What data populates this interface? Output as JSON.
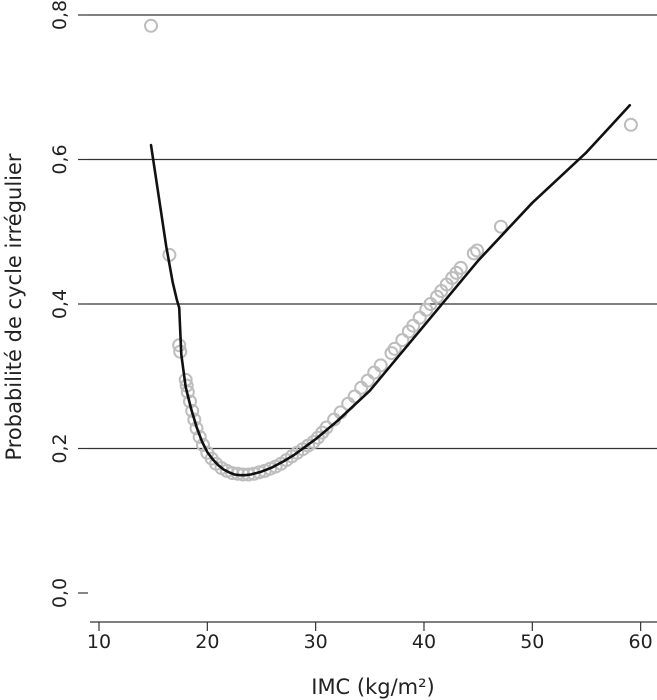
{
  "chart_data": {
    "type": "scatter",
    "title": "",
    "xlabel": "IMC (kg/m²)",
    "ylabel": "Probabilité de cycle irrégulier",
    "xlim": [
      9,
      61
    ],
    "ylim": [
      -0.04,
      0.8
    ],
    "x_ticks": [
      10,
      20,
      30,
      40,
      50,
      60
    ],
    "x_tick_labels": [
      "10",
      "20",
      "30",
      "40",
      "50",
      "60"
    ],
    "y_ticks": [
      0.0,
      0.2,
      0.4,
      0.6,
      0.8
    ],
    "y_tick_labels": [
      "0,0",
      "0,2",
      "0,4",
      "0,6",
      "0,8"
    ],
    "grid": "horizontal",
    "legend": "none",
    "colors": {
      "points": "#bdbdbd",
      "line": "#111111",
      "grid": "#333333",
      "axis": "#333333"
    },
    "series": [
      {
        "kind": "points",
        "x": [
          14.8,
          16.5,
          17.4,
          17.5,
          18.0,
          18.1,
          18.2,
          18.4,
          18.6,
          18.8,
          19.0,
          19.3,
          19.6,
          20.0,
          20.4,
          20.8,
          21.3,
          21.8,
          22.3,
          22.8,
          23.3,
          23.8,
          24.3,
          24.8,
          25.3,
          25.8,
          26.3,
          26.8,
          27.3,
          27.8,
          28.3,
          28.8,
          29.3,
          29.8,
          30.2,
          30.6,
          31.0,
          31.7,
          32.3,
          33.0,
          33.6,
          34.2,
          34.8,
          35.4,
          36.0,
          37.0,
          37.3,
          38.0,
          38.6,
          39.0,
          39.6,
          40.2,
          40.6,
          41.2,
          41.6,
          42.1,
          42.6,
          43.0,
          43.4,
          44.6,
          44.9,
          47.1,
          59.1
        ],
        "y": [
          0.785,
          0.468,
          0.343,
          0.334,
          0.295,
          0.287,
          0.278,
          0.265,
          0.252,
          0.24,
          0.228,
          0.216,
          0.205,
          0.194,
          0.186,
          0.179,
          0.173,
          0.169,
          0.166,
          0.165,
          0.164,
          0.164,
          0.165,
          0.167,
          0.169,
          0.172,
          0.175,
          0.179,
          0.184,
          0.189,
          0.194,
          0.199,
          0.204,
          0.209,
          0.215,
          0.222,
          0.229,
          0.24,
          0.25,
          0.262,
          0.272,
          0.284,
          0.294,
          0.305,
          0.315,
          0.332,
          0.338,
          0.35,
          0.362,
          0.37,
          0.381,
          0.392,
          0.4,
          0.41,
          0.418,
          0.427,
          0.436,
          0.443,
          0.45,
          0.47,
          0.474,
          0.507,
          0.648
        ]
      },
      {
        "kind": "line",
        "x": [
          14.8,
          15.5,
          16.2,
          16.8,
          17.2,
          17.4,
          17.6,
          18.0,
          18.5,
          19.0,
          19.5,
          20.0,
          20.5,
          21.0,
          21.5,
          22.0,
          22.5,
          23.0,
          23.5,
          24.0,
          24.5,
          25.0,
          25.5,
          26.0,
          27.0,
          28.0,
          29.0,
          30.0,
          32.0,
          35.0,
          40.0,
          45.0,
          50.0,
          55.0,
          59.0
        ],
        "y": [
          0.62,
          0.55,
          0.48,
          0.43,
          0.405,
          0.395,
          0.33,
          0.285,
          0.255,
          0.23,
          0.21,
          0.195,
          0.185,
          0.177,
          0.171,
          0.167,
          0.164,
          0.163,
          0.163,
          0.164,
          0.166,
          0.168,
          0.171,
          0.174,
          0.182,
          0.191,
          0.202,
          0.213,
          0.238,
          0.28,
          0.37,
          0.46,
          0.54,
          0.61,
          0.675
        ]
      }
    ]
  }
}
